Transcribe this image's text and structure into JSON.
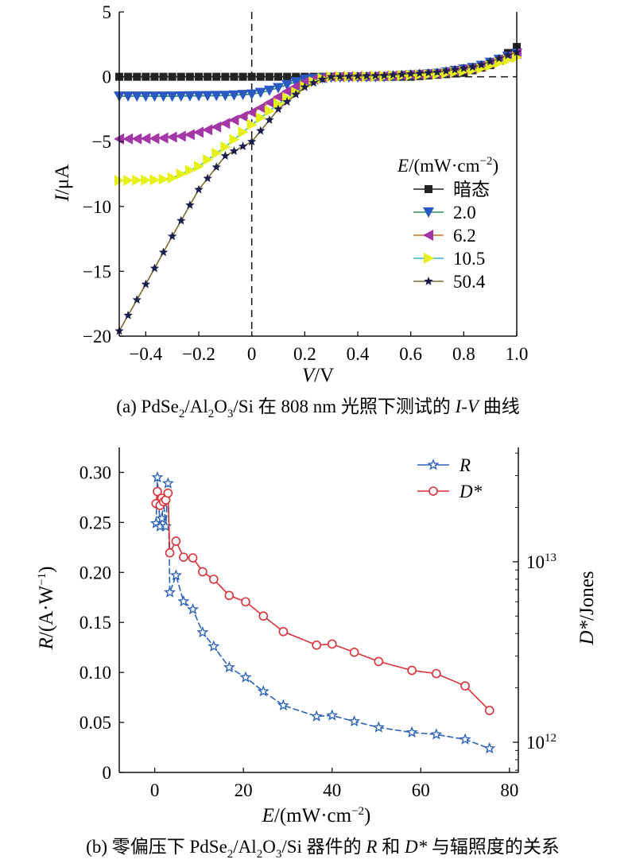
{
  "chart_data": [
    {
      "type": "line",
      "caption": {
        "pre": "(a) PdSe",
        "sub1": "2",
        "mid1": "/Al",
        "sub2": "2",
        "mid2": "O",
        "sub3": "3",
        "mid3": "/Si 在 808 nm 光照下测试的 ",
        "ital": "I-V",
        "post": " 曲线"
      },
      "xlabel": {
        "ital": "V",
        "rest": "/V"
      },
      "ylabel": {
        "ital": "I",
        "rest": "/μA"
      },
      "xlim": [
        -0.5,
        1.0
      ],
      "ylim": [
        -20,
        5
      ],
      "xticks": [
        -0.4,
        -0.2,
        0,
        0.2,
        0.4,
        0.6,
        0.8,
        1.0
      ],
      "xtick_labels": [
        "−0.4",
        "−0.2",
        "0",
        "0.2",
        "0.4",
        "0.6",
        "0.8",
        "1.0"
      ],
      "yticks": [
        5,
        0,
        -5,
        -10,
        -15,
        -20
      ],
      "ytick_labels": [
        "5",
        "0",
        "−5",
        "−10",
        "−15",
        "−20"
      ],
      "legend_title": {
        "ital": "E",
        "rest": "/(mW·cm",
        "sup": "−2",
        "close": ")"
      },
      "legend_position": "right",
      "dashed_reference_lines": {
        "x": 0,
        "y": 0
      },
      "series": [
        {
          "name": "暗态",
          "marker": "square",
          "color": "#222222",
          "marker_color": "#222222",
          "x": [
            -0.5,
            0.6,
            0.8,
            0.9,
            1.0
          ],
          "y": [
            0,
            0,
            0.3,
            0.9,
            2.3
          ]
        },
        {
          "name": "2.0",
          "marker": "triangle-down",
          "color": "#2a8f5a",
          "marker_color": "#2b59c3",
          "x": [
            -0.5,
            -0.3,
            -0.1,
            0,
            0.05,
            0.1,
            0.15,
            0.2,
            0.3,
            0.5,
            0.7,
            0.85,
            1.0
          ],
          "y": [
            -1.5,
            -1.5,
            -1.45,
            -1.35,
            -1.15,
            -0.85,
            -0.5,
            -0.2,
            -0.05,
            0,
            0.25,
            0.75,
            1.8
          ]
        },
        {
          "name": "6.2",
          "marker": "triangle-left",
          "color": "#c8731c",
          "marker_color": "#a437a8",
          "x": [
            -0.5,
            -0.35,
            -0.25,
            -0.15,
            -0.05,
            0,
            0.05,
            0.1,
            0.15,
            0.2,
            0.25,
            0.3,
            0.5,
            0.7,
            0.85,
            1.0
          ],
          "y": [
            -4.8,
            -4.75,
            -4.55,
            -4.0,
            -3.2,
            -2.75,
            -2.2,
            -1.55,
            -0.9,
            -0.4,
            -0.1,
            0,
            0.05,
            0.25,
            0.7,
            1.8
          ]
        },
        {
          "name": "10.5",
          "marker": "triangle-right",
          "color": "#36b8c8",
          "marker_color": "#e6f11a",
          "x": [
            -0.5,
            -0.35,
            -0.3,
            -0.2,
            -0.1,
            0,
            0.1,
            0.2,
            0.25,
            0.3,
            0.5,
            0.7,
            0.85,
            1.0
          ],
          "y": [
            -8.0,
            -7.95,
            -7.8,
            -6.9,
            -5.4,
            -3.7,
            -2.1,
            -0.75,
            -0.2,
            0,
            0.05,
            0.2,
            0.55,
            1.5
          ]
        },
        {
          "name": "50.4",
          "marker": "star",
          "color": "#7a6a2a",
          "marker_color": "#1c1f4e",
          "x": [
            -0.5,
            -0.4,
            -0.3,
            -0.2,
            -0.1,
            0,
            0.1,
            0.2,
            0.25,
            0.3,
            0.5,
            0.7,
            0.85,
            1.0
          ],
          "y": [
            -19.6,
            -16.0,
            -12.3,
            -8.7,
            -6.1,
            -5.0,
            -2.5,
            -0.8,
            -0.3,
            0,
            0.1,
            0.35,
            0.8,
            1.9
          ]
        }
      ]
    },
    {
      "type": "line",
      "caption": {
        "pre": "(b) 零偏压下 PdSe",
        "sub1": "2",
        "mid1": "/Al",
        "sub2": "2",
        "mid2": "O",
        "sub3": "3",
        "mid3": "/Si 器件的 ",
        "ital": "R",
        "mid4": " 和 ",
        "ital2": "D*",
        "post": " 与辐照度的关系"
      },
      "xlabel": {
        "ital": "E",
        "rest": "/(mW·cm",
        "sup": "−2",
        "close": ")"
      },
      "ylabel_left": {
        "ital": "R",
        "rest": "/(A·W",
        "sup": "−1",
        "close": ")"
      },
      "ylabel_right": {
        "ital": "D*",
        "rest": "/Jones"
      },
      "xlim": [
        -8,
        82
      ],
      "xticks": [
        0,
        20,
        40,
        60,
        80
      ],
      "xtick_labels": [
        "0",
        "20",
        "40",
        "60",
        "80"
      ],
      "ylim_left": [
        0,
        0.325
      ],
      "yticks_left": [
        0,
        0.05,
        0.1,
        0.15,
        0.2,
        0.25,
        0.3
      ],
      "ytick_labels_left": [
        "0",
        "0.05",
        "0.10",
        "0.15",
        "0.20",
        "0.25",
        "0.30"
      ],
      "ylim_right_log": [
        680000000000.0,
        43000000000000.0
      ],
      "yticks_right": [
        1000000000000.0,
        10000000000000.0
      ],
      "ytick_labels_right": [
        {
          "base": "10",
          "exp": "12"
        },
        {
          "base": "10",
          "exp": "13"
        }
      ],
      "legend_position": "top-right",
      "series": [
        {
          "name": "R",
          "axis": "left",
          "marker": "star",
          "color": "#2f63b8",
          "x": [
            0.3,
            0.6,
            1.2,
            1.6,
            2.0,
            2.5,
            3.0,
            3.4,
            4.8,
            6.5,
            8.6,
            10.8,
            13.3,
            16.8,
            20.5,
            24.5,
            29.0,
            36.5,
            40.0,
            45.0,
            50.5,
            58.0,
            63.5,
            70.0,
            75.5
          ],
          "y": [
            0.249,
            0.295,
            0.246,
            0.254,
            0.27,
            0.246,
            0.289,
            0.18,
            0.197,
            0.171,
            0.163,
            0.14,
            0.126,
            0.105,
            0.095,
            0.081,
            0.067,
            0.056,
            0.057,
            0.051,
            0.045,
            0.04,
            0.038,
            0.033,
            0.024
          ]
        },
        {
          "name": "D*",
          "axis": "right",
          "marker": "circle",
          "color": "#d9313a",
          "x": [
            0.3,
            0.6,
            1.2,
            1.6,
            2.0,
            2.5,
            3.0,
            3.4,
            4.8,
            6.5,
            8.6,
            10.8,
            13.3,
            16.8,
            20.5,
            24.5,
            29.0,
            36.5,
            40.0,
            45.0,
            50.5,
            58.0,
            63.5,
            70.0,
            75.5
          ],
          "y": [
            21000000000000.0,
            24500000000000.0,
            20500000000000.0,
            22500000000000.0,
            21500000000000.0,
            22000000000000.0,
            24000000000000.0,
            11200000000000.0,
            13000000000000.0,
            10600000000000.0,
            10500000000000.0,
            8800000000000.0,
            8000000000000.0,
            6500000000000.0,
            6000000000000.0,
            5000000000000.0,
            4100000000000.0,
            3450000000000.0,
            3500000000000.0,
            3150000000000.0,
            2800000000000.0,
            2500000000000.0,
            2400000000000.0,
            2050000000000.0,
            1500000000000.0
          ]
        }
      ]
    }
  ]
}
